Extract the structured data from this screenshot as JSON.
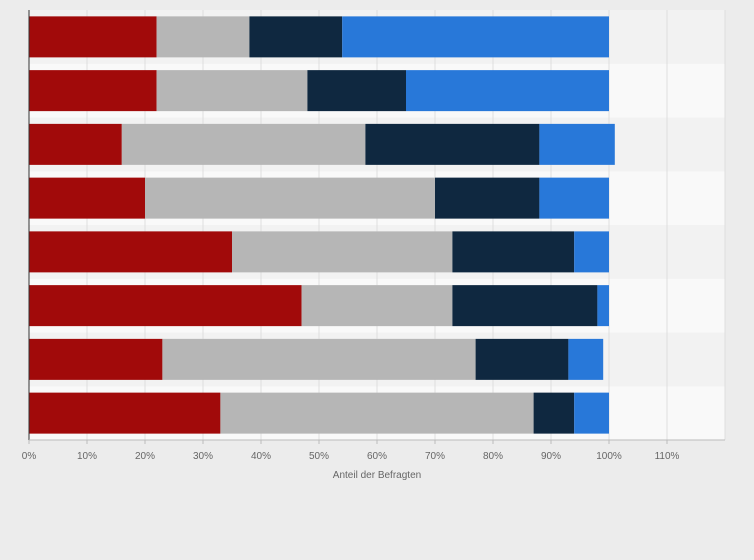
{
  "chart_data": {
    "type": "bar",
    "orientation": "horizontal",
    "stacked": true,
    "title": "",
    "xlabel": "Anteil der Befragten",
    "ylabel": "",
    "xlim": [
      0,
      120
    ],
    "x_ticks": [
      "0%",
      "10%",
      "20%",
      "30%",
      "40%",
      "50%",
      "60%",
      "70%",
      "80%",
      "90%",
      "100%",
      "110%"
    ],
    "grid": true,
    "legend": "none",
    "categories": [
      "",
      "",
      "",
      "",
      "",
      "",
      "",
      ""
    ],
    "series": [
      {
        "color": "#a10a0a",
        "values": [
          22,
          22,
          16,
          20,
          35,
          47,
          23,
          33
        ]
      },
      {
        "color": "#b6b6b6",
        "values": [
          16,
          26,
          42,
          50,
          38,
          26,
          54,
          54
        ]
      },
      {
        "color": "#0f2840",
        "values": [
          16,
          17,
          30,
          18,
          21,
          25,
          16,
          7
        ]
      },
      {
        "color": "#2878d9",
        "values": [
          46,
          35,
          13,
          12,
          6,
          2,
          6,
          6
        ]
      }
    ]
  }
}
